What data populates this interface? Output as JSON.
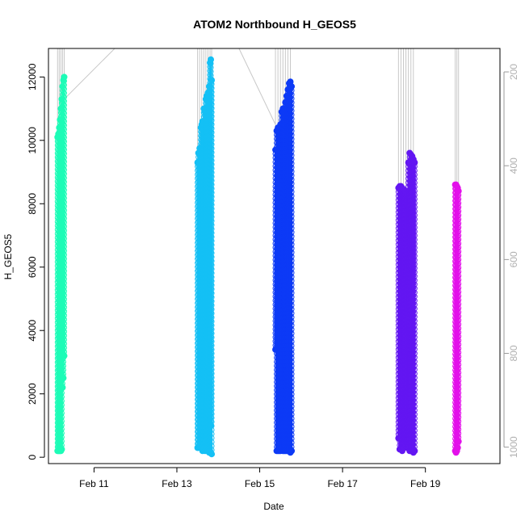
{
  "chart_data": {
    "type": "scatter",
    "title": "ATOM2 Northbound H_GEOS5",
    "xlabel": "Date",
    "ylabel": "H_GEOS5",
    "x_ticks": [
      "Feb 11",
      "Feb 13",
      "Feb 15",
      "Feb 17",
      "Feb 19"
    ],
    "x_tick_days": [
      11,
      13,
      15,
      17,
      19
    ],
    "xlim_days": [
      9.9,
      20.8
    ],
    "ylim": [
      -200,
      12900
    ],
    "y_ticks": [
      0,
      2000,
      4000,
      6000,
      8000,
      10000,
      12000
    ],
    "y2_ticks": [
      200,
      400,
      600,
      800,
      1000
    ],
    "y2lim": [
      1035,
      150
    ],
    "grid": false,
    "series": [
      {
        "color": "#1dfcb7",
        "x_days": [
          10.12,
          10.14,
          10.16,
          10.18,
          10.2,
          10.22,
          10.24,
          10.26,
          10.28
        ],
        "y_max": [
          10100,
          10200,
          10400,
          10650,
          11000,
          11300,
          11700,
          11900,
          12000
        ],
        "y_min": [
          200,
          200,
          200,
          200,
          200,
          250,
          2200,
          2500,
          3200
        ]
      },
      {
        "color": "#14c0f5",
        "x_days": [
          13.5,
          13.52,
          13.55,
          13.58,
          13.6,
          13.62,
          13.65,
          13.68,
          13.7,
          13.72,
          13.75,
          13.78,
          13.8,
          13.82,
          13.84
        ],
        "y_max": [
          9300,
          9600,
          9750,
          10400,
          10500,
          10600,
          11000,
          10900,
          11300,
          11400,
          11500,
          11700,
          12450,
          12550,
          11900
        ],
        "y_min": [
          300,
          300,
          400,
          600,
          300,
          200,
          300,
          200,
          500,
          300,
          200,
          150,
          200,
          1000,
          100
        ]
      },
      {
        "color": "#0d3af6",
        "x_days": [
          15.38,
          15.41,
          15.44,
          15.47,
          15.5,
          15.53,
          15.56,
          15.59,
          15.62,
          15.65,
          15.68,
          15.71,
          15.74,
          15.77
        ],
        "y_max": [
          9700,
          10300,
          10400,
          10300,
          10500,
          10900,
          11000,
          11000,
          11200,
          11400,
          11600,
          11800,
          11850,
          11700
        ],
        "y_min": [
          3400,
          200,
          200,
          200,
          200,
          300,
          200,
          200,
          200,
          200,
          200,
          200,
          150,
          200
        ]
      },
      {
        "color": "#6316f2",
        "x_days": [
          18.35,
          18.38,
          18.41,
          18.44,
          18.47,
          18.5,
          18.53,
          18.56,
          18.59,
          18.62,
          18.65,
          18.68,
          18.71,
          18.74
        ],
        "y_max": [
          8500,
          8550,
          8550,
          8500,
          8450,
          8400,
          8300,
          8350,
          9300,
          9600,
          9550,
          9500,
          9400,
          9300
        ],
        "y_min": [
          600,
          250,
          250,
          200,
          300,
          400,
          350,
          300,
          300,
          200,
          200,
          200,
          150,
          200
        ]
      },
      {
        "color": "#e311ea",
        "x_days": [
          19.72,
          19.74,
          19.76,
          19.78,
          19.8
        ],
        "y_max": [
          8600,
          8600,
          8550,
          8500,
          8400
        ],
        "y_min": [
          200,
          150,
          200,
          300,
          500
        ]
      }
    ]
  }
}
